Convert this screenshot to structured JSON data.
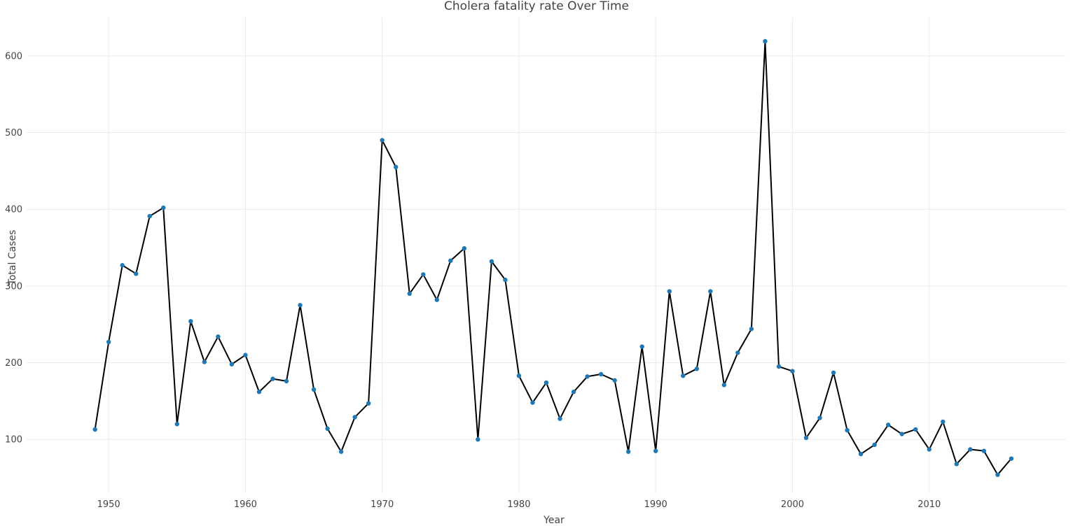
{
  "chart_data": {
    "type": "line",
    "title": "Cholera fatality rate Over Time",
    "xlabel": "Year",
    "ylabel": "Total Cases",
    "xlim": [
      1944,
      2020
    ],
    "ylim": [
      30,
      650
    ],
    "x_ticks": [
      1950,
      1960,
      1970,
      1980,
      1990,
      2000,
      2010
    ],
    "y_ticks": [
      100,
      200,
      300,
      400,
      500,
      600
    ],
    "grid": true,
    "legend": "none",
    "colors": {
      "line": "#000000",
      "marker": "#1f77b4",
      "grid": "#ebebeb",
      "text": "#444444"
    },
    "x": [
      1949,
      1950,
      1951,
      1952,
      1953,
      1954,
      1955,
      1956,
      1957,
      1958,
      1959,
      1960,
      1961,
      1962,
      1963,
      1964,
      1965,
      1966,
      1967,
      1968,
      1969,
      1970,
      1971,
      1972,
      1973,
      1974,
      1975,
      1976,
      1977,
      1978,
      1979,
      1980,
      1981,
      1982,
      1983,
      1984,
      1985,
      1986,
      1987,
      1988,
      1989,
      1990,
      1991,
      1992,
      1993,
      1994,
      1995,
      1996,
      1997,
      1998,
      1999,
      2000,
      2001,
      2002,
      2003,
      2004,
      2005,
      2006,
      2007,
      2008,
      2009,
      2010,
      2011,
      2012,
      2013,
      2014,
      2015,
      2016
    ],
    "series": [
      {
        "values": [
          113,
          227,
          327,
          316,
          391,
          402,
          120,
          254,
          201,
          234,
          198,
          210,
          162,
          179,
          176,
          275,
          165,
          114,
          84,
          129,
          147,
          490,
          455,
          290,
          315,
          282,
          333,
          349,
          100,
          332,
          308,
          183,
          148,
          174,
          127,
          162,
          182,
          185,
          177,
          84,
          221,
          85,
          293,
          183,
          192,
          293,
          171,
          213,
          244,
          619,
          195,
          189,
          102,
          128,
          187,
          112,
          81,
          93,
          119,
          107,
          113,
          87,
          123,
          68,
          87,
          85,
          54,
          75
        ]
      }
    ]
  }
}
